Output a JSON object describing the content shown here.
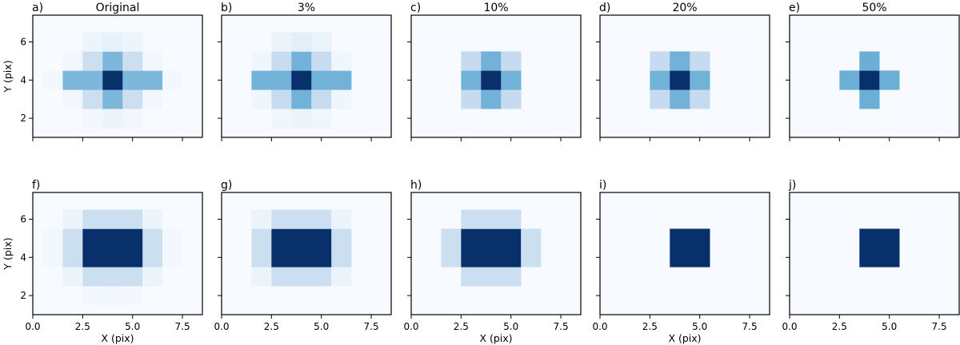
{
  "chart_data": {
    "type": "heatmap",
    "x_range": [
      0.0,
      8.5
    ],
    "y_range": [
      1.0,
      7.4
    ],
    "colormap_colors": [
      "#f7fbff",
      "#c6dbef",
      "#6baed6",
      "#2171b5",
      "#08306b"
    ],
    "x_ticks": [
      "0.0",
      "2.5",
      "5.0",
      "7.5"
    ],
    "x_tick_values": [
      0.0,
      2.5,
      5.0,
      7.5
    ],
    "y_ticks": [
      "2",
      "4",
      "6"
    ],
    "y_tick_values": [
      2,
      4,
      6
    ],
    "xlabel": "X (pix)",
    "ylabel": "Y (pix)",
    "panels": [
      {
        "letter": "a)",
        "title": "Original",
        "row": 0,
        "col": 0,
        "grid": [
          [
            0.0,
            0.0,
            0.0,
            0.0,
            0.0,
            0.0,
            0.0,
            0.0,
            0.0
          ],
          [
            0.0,
            0.0,
            0.0,
            0.0,
            0.0,
            0.0,
            0.0,
            0.0,
            0.0
          ],
          [
            0.0,
            0.0,
            0.0,
            0.03,
            0.05,
            0.03,
            0.0,
            0.0,
            0.0
          ],
          [
            0.0,
            0.0,
            0.03,
            0.22,
            0.45,
            0.22,
            0.03,
            0.0,
            0.0
          ],
          [
            0.0,
            0.02,
            0.45,
            0.45,
            1.0,
            0.45,
            0.45,
            0.02,
            0.0
          ],
          [
            0.0,
            0.0,
            0.03,
            0.22,
            0.45,
            0.22,
            0.03,
            0.0,
            0.0
          ],
          [
            0.0,
            0.0,
            0.0,
            0.05,
            0.08,
            0.05,
            0.0,
            0.0,
            0.0
          ],
          [
            0.0,
            0.0,
            0.0,
            0.0,
            0.0,
            0.0,
            0.0,
            0.0,
            0.0
          ]
        ]
      },
      {
        "letter": "b)",
        "title": "3%",
        "row": 0,
        "col": 1,
        "grid": [
          [
            0.0,
            0.0,
            0.0,
            0.0,
            0.0,
            0.0,
            0.0,
            0.0,
            0.0
          ],
          [
            0.0,
            0.0,
            0.0,
            0.0,
            0.0,
            0.0,
            0.0,
            0.0,
            0.0
          ],
          [
            0.0,
            0.0,
            0.0,
            0.04,
            0.06,
            0.04,
            0.0,
            0.0,
            0.0
          ],
          [
            0.0,
            0.0,
            0.04,
            0.24,
            0.48,
            0.24,
            0.04,
            0.0,
            0.0
          ],
          [
            0.0,
            0.0,
            0.48,
            0.48,
            1.0,
            0.48,
            0.48,
            0.0,
            0.0
          ],
          [
            0.0,
            0.0,
            0.04,
            0.24,
            0.48,
            0.24,
            0.04,
            0.0,
            0.0
          ],
          [
            0.0,
            0.0,
            0.0,
            0.06,
            0.1,
            0.06,
            0.0,
            0.0,
            0.0
          ],
          [
            0.0,
            0.0,
            0.0,
            0.0,
            0.0,
            0.0,
            0.0,
            0.0,
            0.0
          ]
        ]
      },
      {
        "letter": "c)",
        "title": "10%",
        "row": 0,
        "col": 2,
        "grid": [
          [
            0.0,
            0.0,
            0.0,
            0.0,
            0.0,
            0.0,
            0.0,
            0.0,
            0.0
          ],
          [
            0.0,
            0.0,
            0.0,
            0.0,
            0.0,
            0.0,
            0.0,
            0.0,
            0.0
          ],
          [
            0.0,
            0.0,
            0.0,
            0.0,
            0.0,
            0.0,
            0.0,
            0.0,
            0.0
          ],
          [
            0.0,
            0.0,
            0.0,
            0.25,
            0.48,
            0.25,
            0.0,
            0.0,
            0.0
          ],
          [
            0.0,
            0.0,
            0.0,
            0.48,
            1.0,
            0.48,
            0.0,
            0.0,
            0.0
          ],
          [
            0.0,
            0.0,
            0.0,
            0.25,
            0.48,
            0.25,
            0.0,
            0.0,
            0.0
          ],
          [
            0.0,
            0.0,
            0.0,
            0.0,
            0.0,
            0.0,
            0.0,
            0.0,
            0.0
          ],
          [
            0.0,
            0.0,
            0.0,
            0.0,
            0.0,
            0.0,
            0.0,
            0.0,
            0.0
          ]
        ]
      },
      {
        "letter": "d)",
        "title": "20%",
        "row": 0,
        "col": 3,
        "grid": [
          [
            0.0,
            0.0,
            0.0,
            0.0,
            0.0,
            0.0,
            0.0,
            0.0,
            0.0
          ],
          [
            0.0,
            0.0,
            0.0,
            0.0,
            0.0,
            0.0,
            0.0,
            0.0,
            0.0
          ],
          [
            0.0,
            0.0,
            0.0,
            0.0,
            0.0,
            0.0,
            0.0,
            0.0,
            0.0
          ],
          [
            0.0,
            0.0,
            0.0,
            0.25,
            0.48,
            0.25,
            0.0,
            0.0,
            0.0
          ],
          [
            0.0,
            0.0,
            0.0,
            0.48,
            1.0,
            0.48,
            0.0,
            0.0,
            0.0
          ],
          [
            0.0,
            0.0,
            0.0,
            0.25,
            0.48,
            0.25,
            0.0,
            0.0,
            0.0
          ],
          [
            0.0,
            0.0,
            0.0,
            0.0,
            0.0,
            0.0,
            0.0,
            0.0,
            0.0
          ],
          [
            0.0,
            0.0,
            0.0,
            0.0,
            0.0,
            0.0,
            0.0,
            0.0,
            0.0
          ]
        ]
      },
      {
        "letter": "e)",
        "title": "50%",
        "row": 0,
        "col": 4,
        "grid": [
          [
            0.0,
            0.0,
            0.0,
            0.0,
            0.0,
            0.0,
            0.0,
            0.0,
            0.0
          ],
          [
            0.0,
            0.0,
            0.0,
            0.0,
            0.0,
            0.0,
            0.0,
            0.0,
            0.0
          ],
          [
            0.0,
            0.0,
            0.0,
            0.0,
            0.0,
            0.0,
            0.0,
            0.0,
            0.0
          ],
          [
            0.0,
            0.0,
            0.0,
            0.0,
            0.5,
            0.0,
            0.0,
            0.0,
            0.0
          ],
          [
            0.0,
            0.0,
            0.0,
            0.5,
            1.0,
            0.5,
            0.0,
            0.0,
            0.0
          ],
          [
            0.0,
            0.0,
            0.0,
            0.0,
            0.5,
            0.0,
            0.0,
            0.0,
            0.0
          ],
          [
            0.0,
            0.0,
            0.0,
            0.0,
            0.0,
            0.0,
            0.0,
            0.0,
            0.0
          ],
          [
            0.0,
            0.0,
            0.0,
            0.0,
            0.0,
            0.0,
            0.0,
            0.0,
            0.0
          ]
        ]
      },
      {
        "letter": "f)",
        "title": "",
        "row": 1,
        "col": 0,
        "grid": [
          [
            0.0,
            0.0,
            0.0,
            0.0,
            0.0,
            0.0,
            0.0,
            0.0,
            0.0
          ],
          [
            0.0,
            0.0,
            0.0,
            0.0,
            0.0,
            0.0,
            0.0,
            0.0,
            0.0
          ],
          [
            0.0,
            0.0,
            0.0,
            0.02,
            0.03,
            0.02,
            0.0,
            0.0,
            0.0
          ],
          [
            0.0,
            0.0,
            0.05,
            0.22,
            0.22,
            0.22,
            0.05,
            0.0,
            0.0
          ],
          [
            0.0,
            0.02,
            0.22,
            1.0,
            1.0,
            1.0,
            0.22,
            0.02,
            0.0
          ],
          [
            0.0,
            0.02,
            0.22,
            1.0,
            1.0,
            1.0,
            0.22,
            0.02,
            0.0
          ],
          [
            0.0,
            0.0,
            0.05,
            0.22,
            0.22,
            0.22,
            0.05,
            0.0,
            0.0
          ],
          [
            0.0,
            0.0,
            0.0,
            0.0,
            0.0,
            0.0,
            0.0,
            0.0,
            0.0
          ]
        ]
      },
      {
        "letter": "g)",
        "title": "",
        "row": 1,
        "col": 1,
        "grid": [
          [
            0.0,
            0.0,
            0.0,
            0.0,
            0.0,
            0.0,
            0.0,
            0.0,
            0.0
          ],
          [
            0.0,
            0.0,
            0.0,
            0.0,
            0.0,
            0.0,
            0.0,
            0.0,
            0.0
          ],
          [
            0.0,
            0.0,
            0.0,
            0.0,
            0.0,
            0.0,
            0.0,
            0.0,
            0.0
          ],
          [
            0.0,
            0.0,
            0.06,
            0.22,
            0.22,
            0.22,
            0.06,
            0.0,
            0.0
          ],
          [
            0.0,
            0.0,
            0.22,
            1.0,
            1.0,
            1.0,
            0.22,
            0.0,
            0.0
          ],
          [
            0.0,
            0.0,
            0.22,
            1.0,
            1.0,
            1.0,
            0.22,
            0.0,
            0.0
          ],
          [
            0.0,
            0.0,
            0.06,
            0.22,
            0.22,
            0.22,
            0.06,
            0.0,
            0.0
          ],
          [
            0.0,
            0.0,
            0.0,
            0.0,
            0.0,
            0.0,
            0.0,
            0.0,
            0.0
          ]
        ]
      },
      {
        "letter": "h)",
        "title": "",
        "row": 1,
        "col": 2,
        "grid": [
          [
            0.0,
            0.0,
            0.0,
            0.0,
            0.0,
            0.0,
            0.0,
            0.0,
            0.0
          ],
          [
            0.0,
            0.0,
            0.0,
            0.0,
            0.0,
            0.0,
            0.0,
            0.0,
            0.0
          ],
          [
            0.0,
            0.0,
            0.0,
            0.0,
            0.0,
            0.0,
            0.0,
            0.0,
            0.0
          ],
          [
            0.0,
            0.0,
            0.0,
            0.22,
            0.22,
            0.22,
            0.0,
            0.0,
            0.0
          ],
          [
            0.0,
            0.0,
            0.22,
            1.0,
            1.0,
            1.0,
            0.22,
            0.0,
            0.0
          ],
          [
            0.0,
            0.0,
            0.22,
            1.0,
            1.0,
            1.0,
            0.22,
            0.0,
            0.0
          ],
          [
            0.0,
            0.0,
            0.0,
            0.22,
            0.22,
            0.22,
            0.0,
            0.0,
            0.0
          ],
          [
            0.0,
            0.0,
            0.0,
            0.0,
            0.0,
            0.0,
            0.0,
            0.0,
            0.0
          ]
        ]
      },
      {
        "letter": "i)",
        "title": "",
        "row": 1,
        "col": 3,
        "grid": [
          [
            0.0,
            0.0,
            0.0,
            0.0,
            0.0,
            0.0,
            0.0,
            0.0,
            0.0
          ],
          [
            0.0,
            0.0,
            0.0,
            0.0,
            0.0,
            0.0,
            0.0,
            0.0,
            0.0
          ],
          [
            0.0,
            0.0,
            0.0,
            0.0,
            0.0,
            0.0,
            0.0,
            0.0,
            0.0
          ],
          [
            0.0,
            0.0,
            0.0,
            0.0,
            0.0,
            0.0,
            0.0,
            0.0,
            0.0
          ],
          [
            0.0,
            0.0,
            0.0,
            0.0,
            1.0,
            1.0,
            0.0,
            0.0,
            0.0
          ],
          [
            0.0,
            0.0,
            0.0,
            0.0,
            1.0,
            1.0,
            0.0,
            0.0,
            0.0
          ],
          [
            0.0,
            0.0,
            0.0,
            0.0,
            0.0,
            0.0,
            0.0,
            0.0,
            0.0
          ],
          [
            0.0,
            0.0,
            0.0,
            0.0,
            0.0,
            0.0,
            0.0,
            0.0,
            0.0
          ]
        ]
      },
      {
        "letter": "j)",
        "title": "",
        "row": 1,
        "col": 4,
        "grid": [
          [
            0.0,
            0.0,
            0.0,
            0.0,
            0.0,
            0.0,
            0.0,
            0.0,
            0.0
          ],
          [
            0.0,
            0.0,
            0.0,
            0.0,
            0.0,
            0.0,
            0.0,
            0.0,
            0.0
          ],
          [
            0.0,
            0.0,
            0.0,
            0.0,
            0.0,
            0.0,
            0.0,
            0.0,
            0.0
          ],
          [
            0.0,
            0.0,
            0.0,
            0.0,
            0.0,
            0.0,
            0.0,
            0.0,
            0.0
          ],
          [
            0.0,
            0.0,
            0.0,
            0.0,
            1.0,
            1.0,
            0.0,
            0.0,
            0.0
          ],
          [
            0.0,
            0.0,
            0.0,
            0.0,
            1.0,
            1.0,
            0.0,
            0.0,
            0.0
          ],
          [
            0.0,
            0.0,
            0.0,
            0.0,
            0.0,
            0.0,
            0.0,
            0.0,
            0.0
          ],
          [
            0.0,
            0.0,
            0.0,
            0.0,
            0.0,
            0.0,
            0.0,
            0.0,
            0.0
          ]
        ]
      }
    ]
  }
}
